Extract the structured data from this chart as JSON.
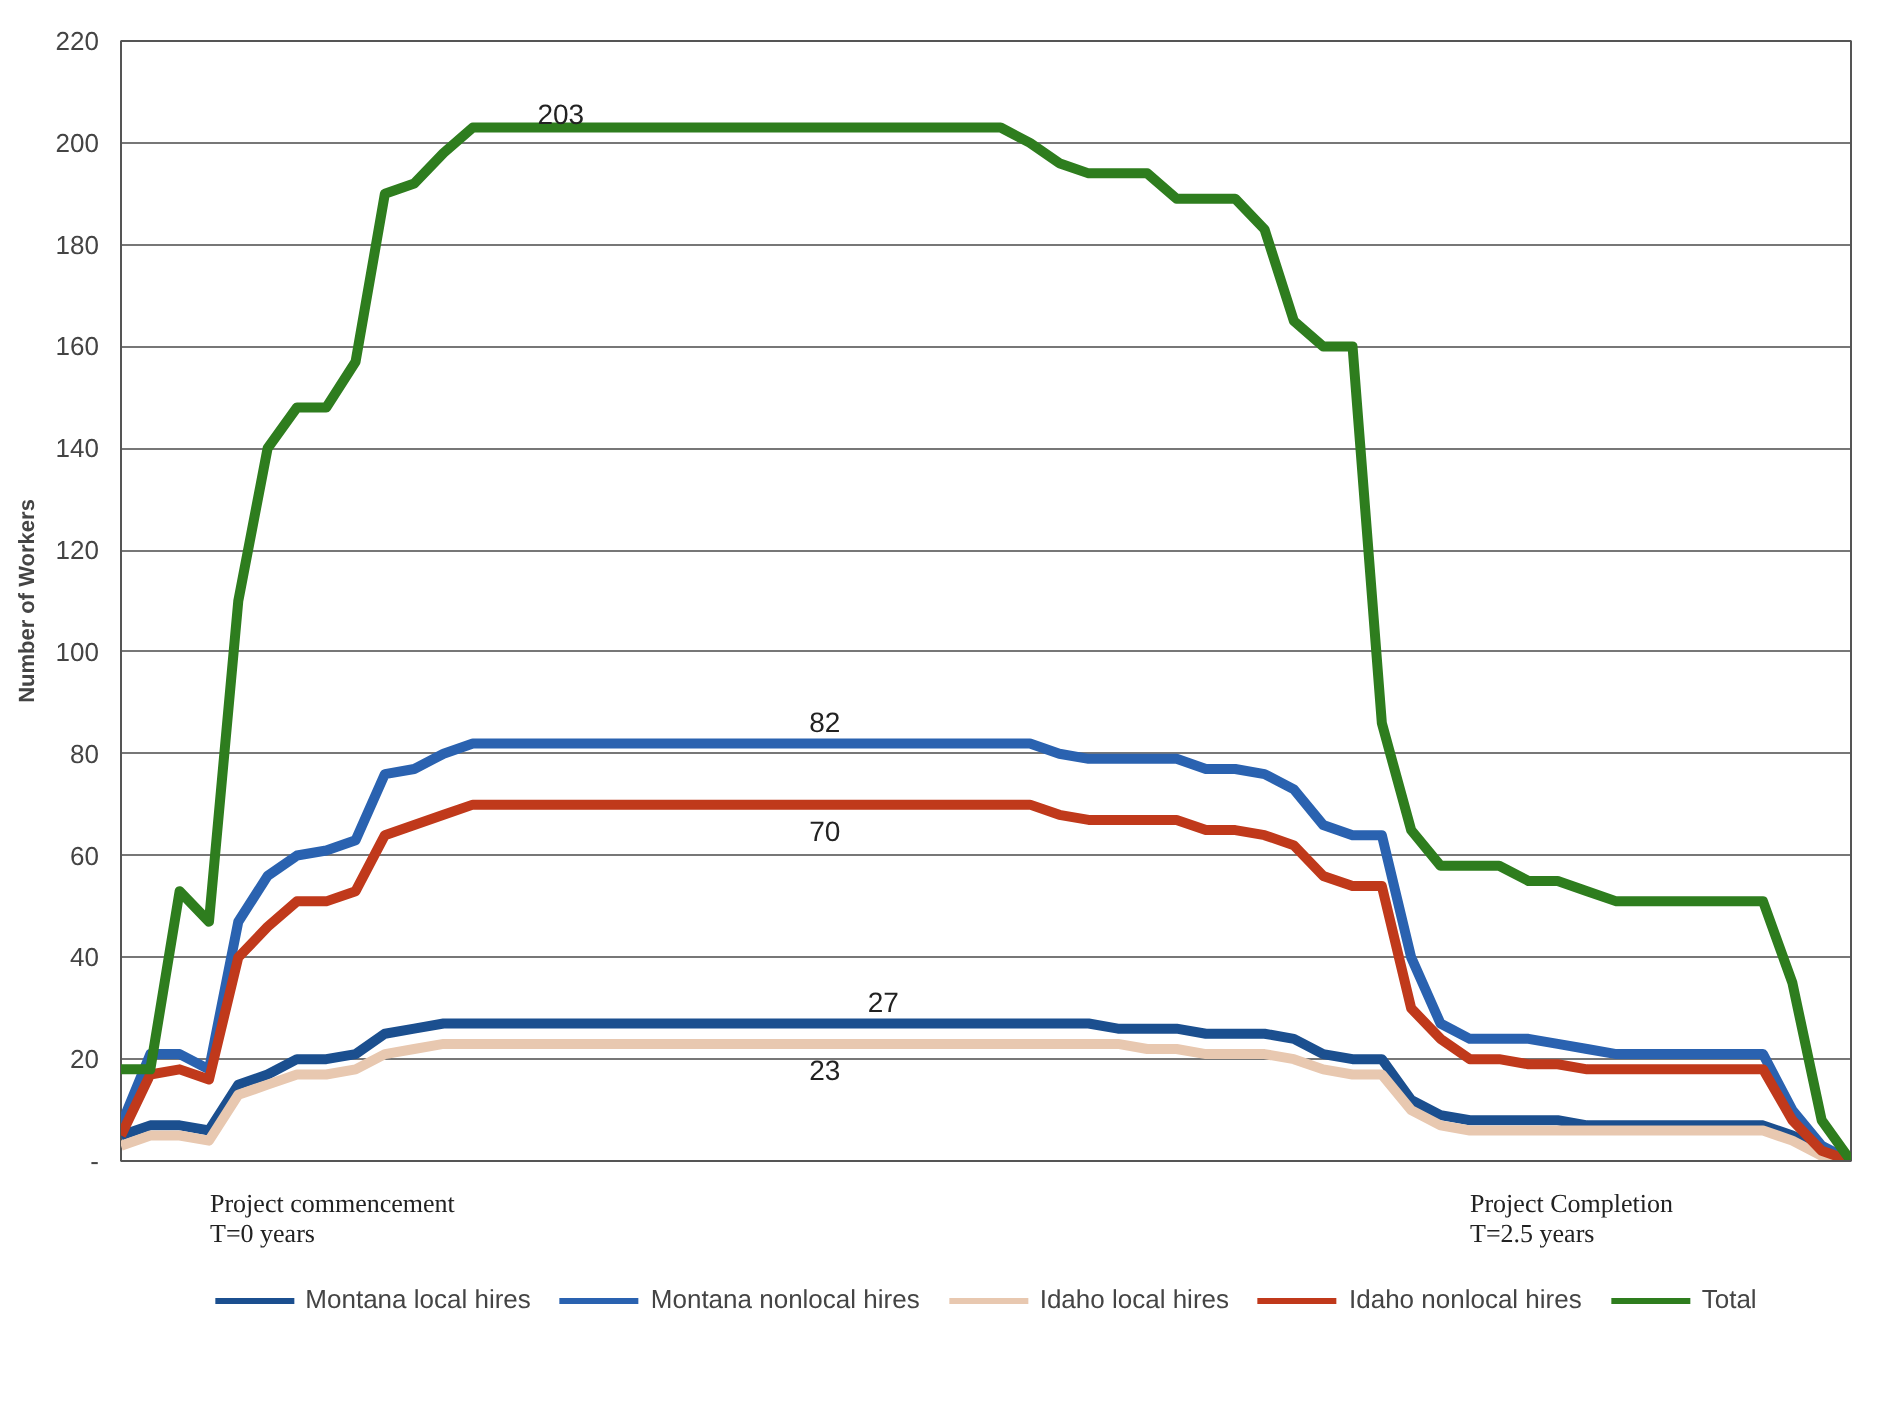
{
  "chart_data": {
    "type": "line",
    "ylabel": "Number of Workers",
    "categories": [
      null,
      null,
      null,
      null,
      null,
      null,
      null,
      null,
      null,
      null,
      null,
      null,
      null,
      null,
      null,
      null,
      null,
      null,
      null,
      null,
      null,
      null,
      null,
      null,
      null,
      null,
      null,
      null,
      null,
      null,
      null,
      null,
      null,
      null,
      null,
      null,
      null,
      null,
      null,
      null,
      null,
      null,
      null,
      null,
      null,
      null,
      null,
      null,
      null,
      null,
      null,
      null,
      null,
      null,
      null,
      null,
      null,
      null,
      null,
      null
    ],
    "ylim": [
      0,
      220
    ],
    "yticks": [
      {
        "value": 0,
        "label": "-"
      },
      20,
      40,
      60,
      80,
      100,
      120,
      140,
      160,
      180,
      200,
      220
    ],
    "grid": "y",
    "legend": "bottom",
    "marker": "none",
    "line_style": "solid",
    "annotations": [
      "Project commencement\nT=0 years",
      "Project Completion\nT=2.5 years"
    ],
    "series": [
      {
        "name": "Montana local hires",
        "color": "#1b4f8f",
        "values": [
          5,
          7,
          7,
          6,
          15,
          17,
          20,
          20,
          21,
          25,
          26,
          27,
          27,
          27,
          27,
          27,
          27,
          27,
          27,
          27,
          27,
          27,
          27,
          27,
          27,
          27,
          27,
          27,
          27,
          27,
          27,
          27,
          27,
          27,
          26,
          26,
          26,
          25,
          25,
          25,
          24,
          21,
          20,
          20,
          12,
          9,
          8,
          8,
          8,
          8,
          7,
          7,
          7,
          7,
          7,
          7,
          7,
          5,
          2,
          0
        ],
        "value_labels": [
          null,
          null,
          null,
          null,
          null,
          null,
          null,
          null,
          null,
          null,
          null,
          null,
          null,
          null,
          null,
          null,
          null,
          null,
          null,
          null,
          null,
          null,
          null,
          null,
          null,
          null,
          "27",
          null,
          null,
          null,
          null,
          null,
          null,
          null,
          null,
          null,
          null,
          null,
          null,
          null,
          null,
          null,
          null,
          null,
          null,
          null,
          null,
          null,
          null,
          null,
          null,
          null,
          null,
          null,
          null,
          null,
          null,
          null,
          null,
          null
        ]
      },
      {
        "name": "Montana nonlocal hires",
        "color": "#2a62b0",
        "values": [
          7,
          21,
          21,
          18,
          47,
          56,
          60,
          61,
          63,
          76,
          77,
          80,
          82,
          82,
          82,
          82,
          82,
          82,
          82,
          82,
          82,
          82,
          82,
          82,
          82,
          82,
          82,
          82,
          82,
          82,
          82,
          82,
          80,
          79,
          79,
          79,
          79,
          77,
          77,
          76,
          73,
          66,
          64,
          64,
          40,
          27,
          24,
          24,
          24,
          23,
          22,
          21,
          21,
          21,
          21,
          21,
          21,
          10,
          3,
          0
        ],
        "value_labels": [
          null,
          null,
          null,
          null,
          null,
          null,
          null,
          null,
          null,
          null,
          null,
          null,
          null,
          null,
          null,
          null,
          null,
          null,
          null,
          null,
          null,
          null,
          null,
          null,
          "82",
          null,
          null,
          null,
          null,
          null,
          null,
          null,
          null,
          null,
          null,
          null,
          null,
          null,
          null,
          null,
          null,
          null,
          null,
          null,
          null,
          null,
          null,
          null,
          null,
          null,
          null,
          null,
          null,
          null,
          null,
          null,
          null,
          null,
          null,
          null
        ]
      },
      {
        "name": "Idaho local hires",
        "color": "#e8c8b0",
        "values": [
          3,
          5,
          5,
          4,
          13,
          15,
          17,
          17,
          18,
          21,
          22,
          23,
          23,
          23,
          23,
          23,
          23,
          23,
          23,
          23,
          23,
          23,
          23,
          23,
          23,
          23,
          23,
          23,
          23,
          23,
          23,
          23,
          23,
          23,
          23,
          22,
          22,
          21,
          21,
          21,
          20,
          18,
          17,
          17,
          10,
          7,
          6,
          6,
          6,
          6,
          6,
          6,
          6,
          6,
          6,
          6,
          6,
          4,
          1,
          0
        ],
        "value_labels": [
          null,
          null,
          null,
          null,
          null,
          null,
          null,
          null,
          null,
          null,
          null,
          null,
          null,
          null,
          null,
          null,
          null,
          null,
          null,
          null,
          null,
          null,
          null,
          null,
          "23",
          null,
          null,
          null,
          null,
          null,
          null,
          null,
          null,
          null,
          null,
          null,
          null,
          null,
          null,
          null,
          null,
          null,
          null,
          null,
          null,
          null,
          null,
          null,
          null,
          null,
          null,
          null,
          null,
          null,
          null,
          null,
          null,
          null,
          null,
          null
        ]
      },
      {
        "name": "Idaho nonlocal hires",
        "color": "#c0391b",
        "values": [
          5,
          17,
          18,
          16,
          40,
          46,
          51,
          51,
          53,
          64,
          66,
          68,
          70,
          70,
          70,
          70,
          70,
          70,
          70,
          70,
          70,
          70,
          70,
          70,
          70,
          70,
          70,
          70,
          70,
          70,
          70,
          70,
          68,
          67,
          67,
          67,
          67,
          65,
          65,
          64,
          62,
          56,
          54,
          54,
          30,
          24,
          20,
          20,
          19,
          19,
          18,
          18,
          18,
          18,
          18,
          18,
          18,
          8,
          2,
          0
        ],
        "value_labels": [
          null,
          null,
          null,
          null,
          null,
          null,
          null,
          null,
          null,
          null,
          null,
          null,
          null,
          null,
          null,
          null,
          null,
          null,
          null,
          null,
          null,
          null,
          null,
          null,
          "70",
          null,
          null,
          null,
          null,
          null,
          null,
          null,
          null,
          null,
          null,
          null,
          null,
          null,
          null,
          null,
          null,
          null,
          null,
          null,
          null,
          null,
          null,
          null,
          null,
          null,
          null,
          null,
          null,
          null,
          null,
          null,
          null,
          null,
          null,
          null
        ]
      },
      {
        "name": "Total",
        "color": "#2e7d1e",
        "values": [
          18,
          18,
          53,
          47,
          110,
          140,
          148,
          148,
          157,
          190,
          192,
          198,
          203,
          203,
          203,
          203,
          203,
          203,
          203,
          203,
          203,
          203,
          203,
          203,
          203,
          203,
          203,
          203,
          203,
          203,
          203,
          200,
          196,
          194,
          194,
          194,
          189,
          189,
          189,
          183,
          165,
          160,
          160,
          86,
          65,
          58,
          58,
          58,
          55,
          55,
          53,
          51,
          51,
          51,
          51,
          51,
          51,
          35,
          8,
          0
        ],
        "value_labels": [
          null,
          null,
          null,
          null,
          null,
          null,
          null,
          null,
          null,
          null,
          null,
          null,
          null,
          null,
          null,
          "203",
          null,
          null,
          null,
          null,
          null,
          null,
          null,
          null,
          null,
          null,
          null,
          null,
          null,
          null,
          null,
          null,
          null,
          null,
          null,
          null,
          null,
          null,
          null,
          null,
          null,
          null,
          null,
          null,
          null,
          null,
          null,
          null,
          null,
          null,
          null,
          null,
          null,
          null,
          null,
          null,
          null,
          null,
          null,
          null
        ]
      }
    ]
  }
}
